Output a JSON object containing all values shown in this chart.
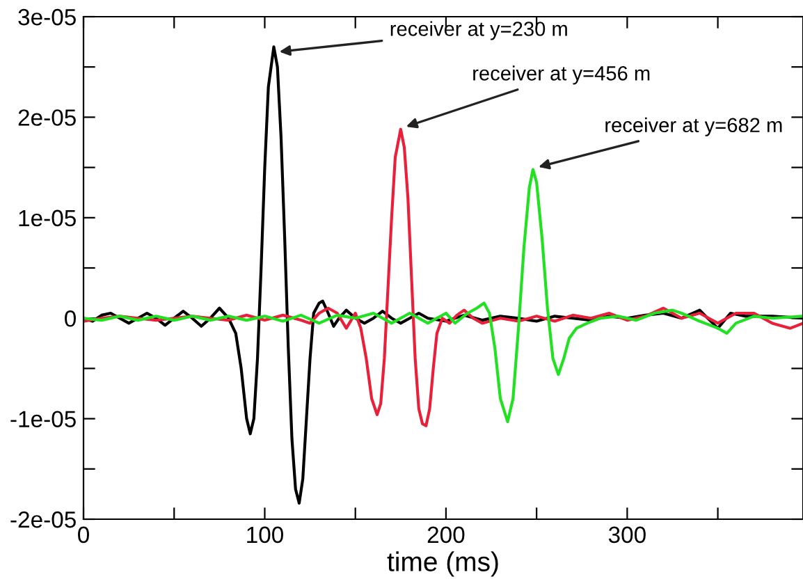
{
  "chart_data": {
    "type": "line",
    "xlabel": "time (ms)",
    "xlim": [
      0,
      397
    ],
    "ylim": [
      -2e-05,
      3e-05
    ],
    "xticks": [
      0,
      {
        "value": 50,
        "label": null
      },
      100,
      {
        "value": 150,
        "label": null
      },
      200,
      {
        "value": 250,
        "label": null
      },
      300,
      {
        "value": 350,
        "label": null
      }
    ],
    "yticks": [
      {
        "value": -2e-05,
        "label": "-2e-05"
      },
      {
        "value": -1.5e-05,
        "label": null
      },
      {
        "value": -1e-05,
        "label": "-1e-05"
      },
      {
        "value": -5e-06,
        "label": null
      },
      {
        "value": 0,
        "label": "0"
      },
      {
        "value": 5e-06,
        "label": null
      },
      {
        "value": 1e-05,
        "label": "1e-05"
      },
      {
        "value": 1.5e-05,
        "label": null
      },
      {
        "value": 2e-05,
        "label": "2e-05"
      },
      {
        "value": 2.5e-05,
        "label": null
      },
      {
        "value": 3e-05,
        "label": "3e-05"
      }
    ],
    "grid": false,
    "legend": false,
    "marker": "none",
    "line_style": "solid",
    "series": [
      {
        "color": "#000000",
        "x": [
          0,
          5,
          10,
          15,
          20,
          25,
          30,
          35,
          40,
          45,
          50,
          55,
          60,
          65,
          70,
          75,
          80,
          84,
          87,
          90,
          92,
          94,
          96,
          98,
          100,
          102,
          105,
          107,
          109,
          111,
          113,
          115,
          117,
          119,
          121,
          123,
          125,
          127,
          130,
          132,
          135,
          138,
          141,
          145,
          150,
          155,
          160,
          165,
          170,
          175,
          180,
          185,
          190,
          200,
          210,
          220,
          230,
          240,
          250,
          260,
          270,
          280,
          290,
          300,
          310,
          320,
          330,
          340,
          350,
          357,
          365,
          380,
          397
        ],
        "values": [
          0,
          -3e-07,
          3e-07,
          5e-07,
          0,
          -5e-07,
          0,
          5e-07,
          0,
          -7e-07,
          0,
          7e-07,
          0,
          -8e-07,
          0,
          1e-06,
          0,
          -1.5e-06,
          -5e-06,
          -1e-05,
          -1.15e-05,
          -1e-05,
          -4e-06,
          5e-06,
          1.5e-05,
          2.3e-05,
          2.7e-05,
          2.5e-05,
          1.8e-05,
          8e-06,
          -3e-06,
          -1.2e-05,
          -1.7e-05,
          -1.84e-05,
          -1.6e-05,
          -1e-05,
          -4e-06,
          5e-07,
          1.5e-06,
          1.7e-06,
          5e-07,
          -8e-07,
          0,
          8e-07,
          0,
          -5e-07,
          0,
          7e-07,
          0,
          -5e-07,
          0,
          5e-07,
          0,
          -3e-07,
          3e-07,
          -2e-07,
          2e-07,
          0,
          -3e-07,
          2e-07,
          0,
          -2e-07,
          2e-07,
          0,
          3e-07,
          5e-07,
          0,
          8e-07,
          -1e-06,
          5e-07,
          2e-07,
          2e-07,
          0
        ]
      },
      {
        "color": "#e8203a",
        "x": [
          0,
          10,
          20,
          30,
          40,
          50,
          60,
          70,
          80,
          90,
          100,
          110,
          120,
          125,
          130,
          135,
          140,
          145,
          150,
          153,
          156,
          159,
          162,
          164,
          166,
          168,
          170,
          172,
          175,
          177,
          179,
          181,
          183,
          185,
          187,
          189,
          191,
          193,
          195,
          198,
          202,
          206,
          210,
          215,
          220,
          230,
          240,
          250,
          260,
          270,
          280,
          290,
          300,
          310,
          320,
          330,
          340,
          350,
          360,
          370,
          380,
          390,
          397
        ],
        "values": [
          -3e-07,
          0,
          2e-07,
          0,
          -2e-07,
          0,
          2e-07,
          0,
          -2e-07,
          3e-07,
          -2e-07,
          3e-07,
          -2e-07,
          -5e-07,
          5e-07,
          1e-06,
          5e-07,
          -1e-06,
          5e-07,
          -1e-06,
          -4e-06,
          -8e-06,
          -9.6e-06,
          -8.5e-06,
          -4e-06,
          3e-06,
          1e-05,
          1.6e-05,
          1.88e-05,
          1.7e-05,
          1.2e-05,
          4e-06,
          -4e-06,
          -9e-06,
          -1.05e-05,
          -1.07e-05,
          -9e-06,
          -5e-06,
          -1.5e-06,
          0,
          -5e-07,
          3e-07,
          8e-07,
          0,
          -5e-07,
          0,
          -3e-07,
          2e-07,
          -3e-07,
          3e-07,
          0,
          5e-07,
          -2e-07,
          2e-07,
          1e-06,
          0,
          5e-07,
          -5e-07,
          5e-07,
          5e-07,
          -5e-07,
          -1e-06,
          -5e-07
        ]
      },
      {
        "color": "#22e022",
        "x": [
          0,
          10,
          20,
          30,
          40,
          50,
          60,
          70,
          80,
          90,
          100,
          110,
          120,
          130,
          140,
          150,
          160,
          170,
          180,
          190,
          200,
          205,
          212,
          217,
          221,
          224,
          227,
          230,
          234,
          237,
          240,
          243,
          246,
          248,
          250,
          253,
          256,
          259,
          262,
          265,
          268,
          272,
          278,
          285,
          295,
          305,
          315,
          325,
          330,
          340,
          350,
          355,
          360,
          370,
          380,
          397
        ],
        "values": [
          0,
          -2e-07,
          2e-07,
          -2e-07,
          2e-07,
          -2e-07,
          2e-07,
          -2e-07,
          2e-07,
          -2e-07,
          2e-07,
          -3e-07,
          3e-07,
          -5e-07,
          3e-07,
          0,
          5e-07,
          -5e-07,
          5e-07,
          -5e-07,
          5e-07,
          -5e-07,
          5e-07,
          1e-06,
          1.5e-06,
          5e-07,
          -3e-06,
          -8e-06,
          -1.03e-05,
          -8e-06,
          -1e-06,
          7e-06,
          1.3e-05,
          1.48e-05,
          1.35e-05,
          8e-06,
          1e-06,
          -4e-06,
          -5.6e-06,
          -4e-06,
          -2e-06,
          -1e-06,
          -5e-07,
          0,
          2e-07,
          -2e-07,
          5e-07,
          8e-07,
          5e-07,
          -3e-07,
          -1e-06,
          -1.5e-06,
          -5e-07,
          2e-07,
          0,
          2e-07
        ]
      }
    ],
    "annotations": [
      {
        "text": "receiver at y=230 m",
        "x": 107,
        "y": 2.65e-05
      },
      {
        "text": "receiver at y=456 m",
        "x": 177,
        "y": 1.9e-05
      },
      {
        "text": "receiver at y=682 m",
        "x": 250,
        "y": 1.5e-05
      }
    ]
  }
}
